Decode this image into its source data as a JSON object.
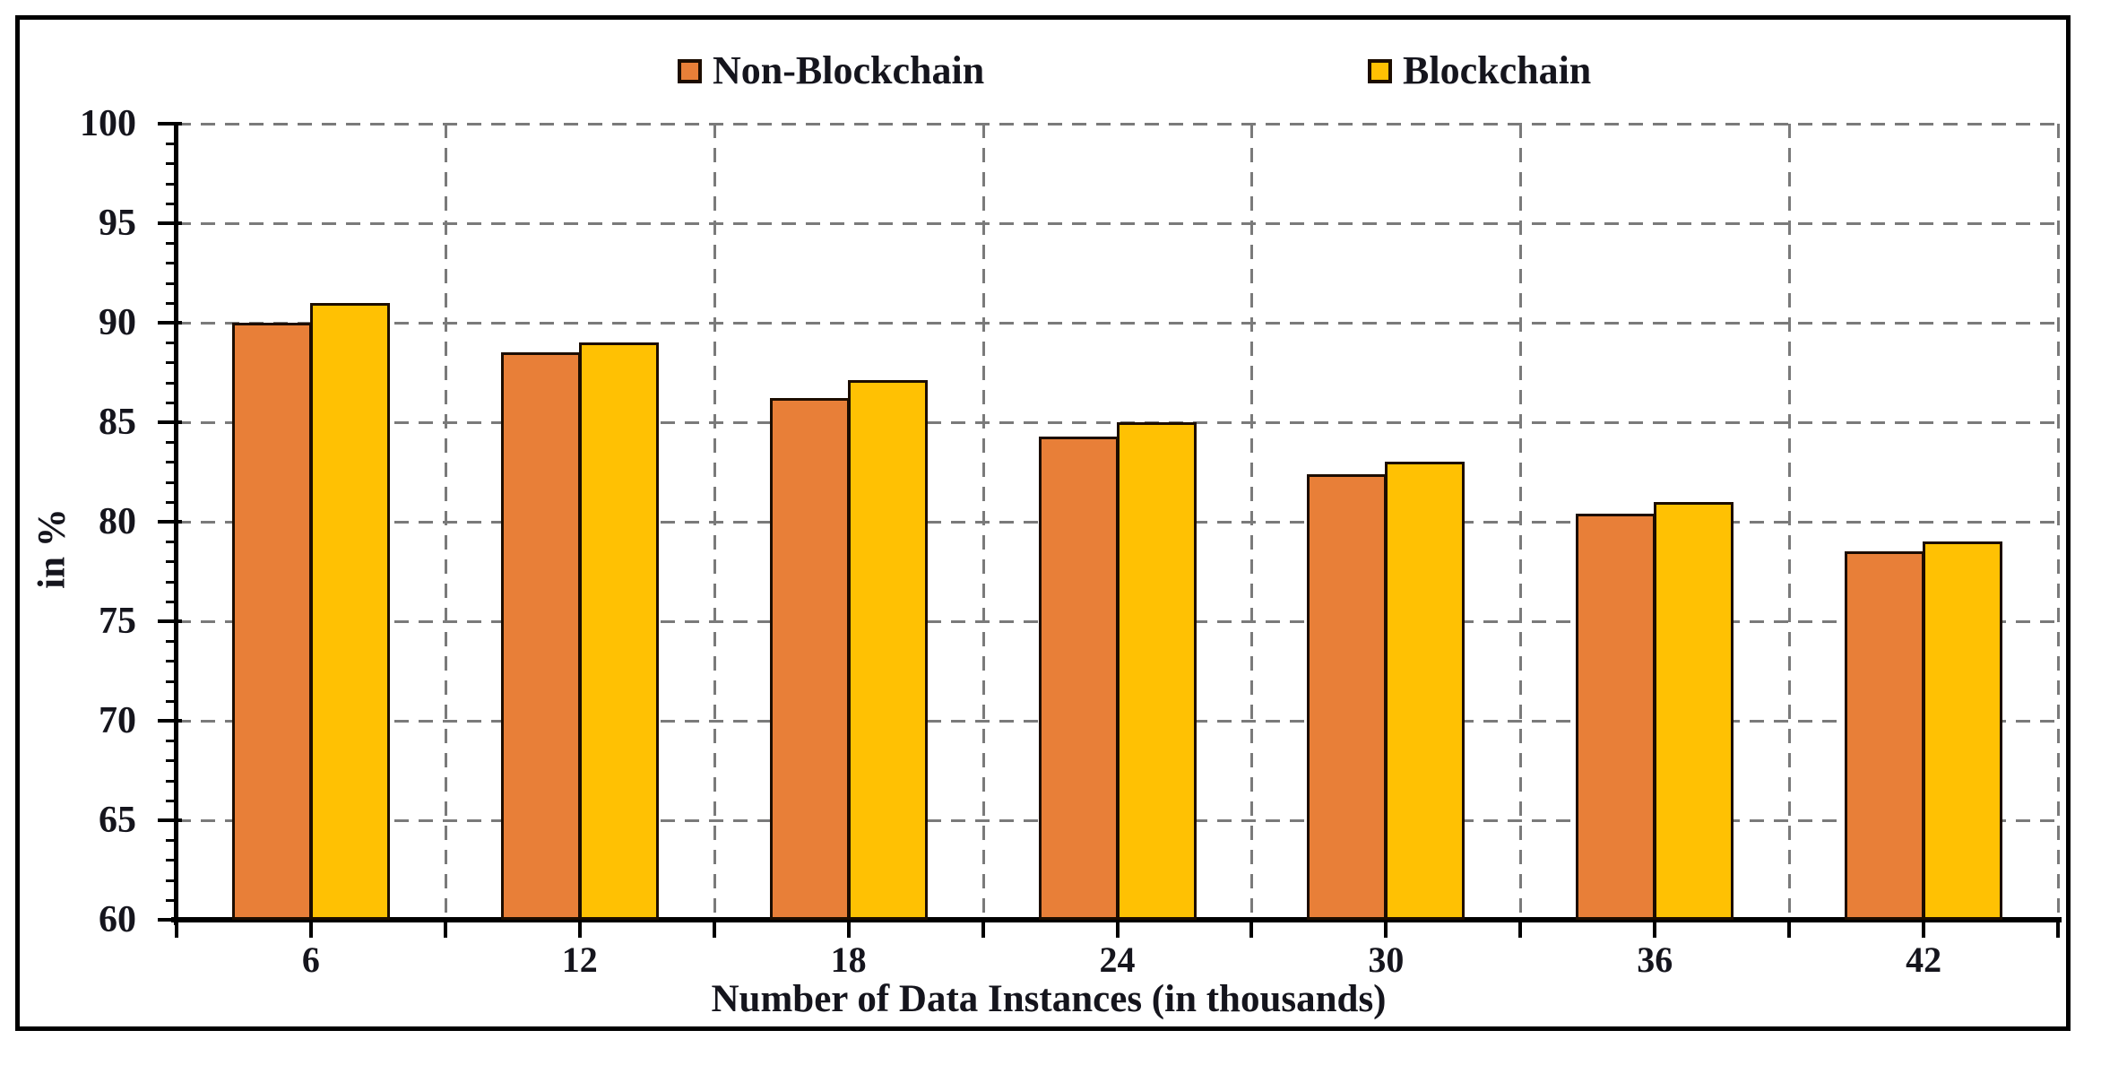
{
  "figure": {
    "background": "#ffffff",
    "frame_color": "#000000"
  },
  "legend": {
    "position": "top",
    "items": [
      {
        "label": "Non-Blockchain",
        "swatch_color": "#E87F38",
        "swatch_border": "#1C0D00"
      },
      {
        "label": "Blockchain",
        "swatch_color": "#FFC103",
        "swatch_border": "#1C0D00"
      }
    ]
  },
  "chart_data": {
    "type": "bar",
    "title": "",
    "xlabel": "Number of Data Instances (in thousands)",
    "ylabel": "in %",
    "categories": [
      "6",
      "12",
      "18",
      "24",
      "30",
      "36",
      "42"
    ],
    "series": [
      {
        "name": "Non-Blockchain",
        "color": "#E87F38",
        "values": [
          90,
          88.5,
          86.2,
          84.3,
          82.4,
          80.4,
          78.5
        ]
      },
      {
        "name": "Blockchain",
        "color": "#FFC103",
        "values": [
          91,
          89,
          87.1,
          85,
          83,
          81,
          79
        ]
      }
    ],
    "ylim": [
      60,
      100
    ],
    "yticks": [
      60,
      65,
      70,
      75,
      80,
      85,
      90,
      95,
      100
    ],
    "y_minor_tick_step": 1,
    "grid": "dashed",
    "grid_color": "#7A7A7A",
    "axis_color": "#000000",
    "text_color": "#15151D",
    "bar_outline_color": "#1C0D00",
    "legend_position": "top-center"
  }
}
